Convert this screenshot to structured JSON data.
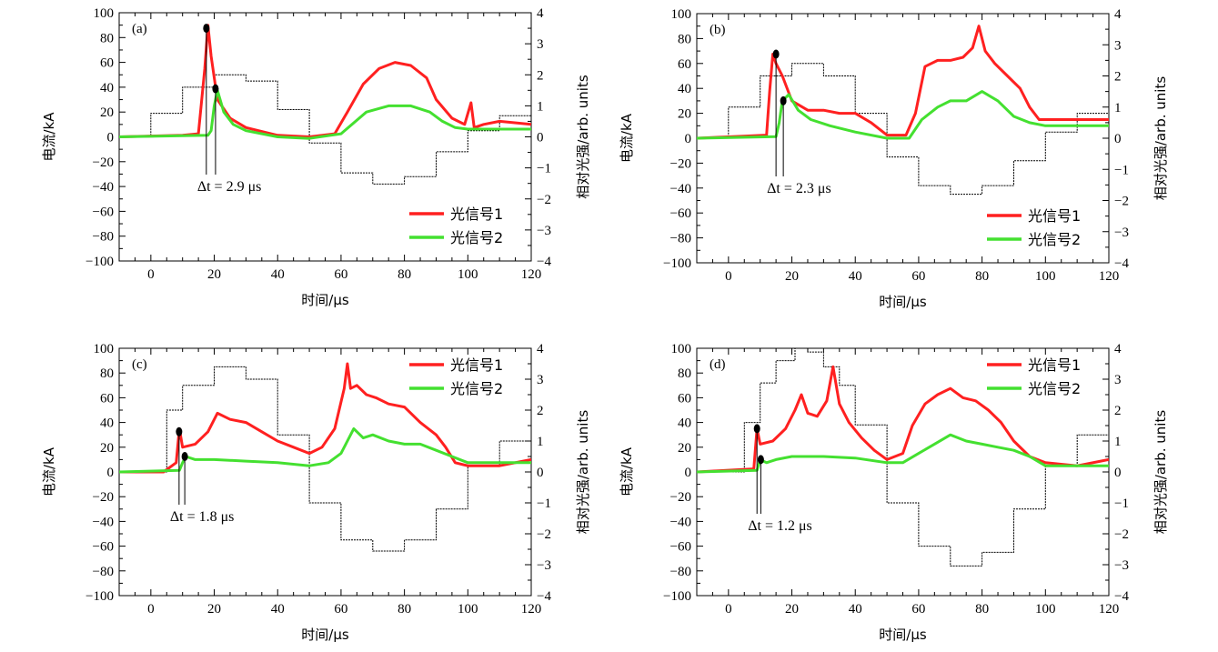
{
  "chart_data": [
    {
      "type": "line",
      "panel": "(a)",
      "xlabel": "时间/μs",
      "ylabel": "电流/kA",
      "y2label": "相对光强/arb. units",
      "xlim": [
        -10,
        120
      ],
      "ylim": [
        -100,
        100
      ],
      "y2lim": [
        -4,
        4
      ],
      "xticks": [
        "0",
        "20",
        "40",
        "60",
        "80",
        "100",
        "120"
      ],
      "yticks": [
        "−100",
        "−80",
        "−60",
        "−40",
        "−20",
        "0",
        "20",
        "40",
        "60",
        "80",
        "100"
      ],
      "y2ticks": [
        "−4",
        "−3",
        "−2",
        "−1",
        "0",
        "1",
        "2",
        "3",
        "4"
      ],
      "legend": {
        "position": "bottom-right",
        "entries": [
          "光信号1",
          "光信号2"
        ]
      },
      "annotation": "Δt = 2.9 μs",
      "series": [
        {
          "name": "电流",
          "color": "#000000",
          "axis": "left",
          "x": [
            -10,
            0,
            10,
            20,
            30,
            40,
            50,
            60,
            70,
            80,
            90,
            100,
            110,
            120
          ],
          "y": [
            0,
            19,
            40,
            50,
            45,
            22,
            -5,
            -29,
            -38,
            -32,
            -12,
            5,
            17,
            26
          ]
        },
        {
          "name": "光信号1",
          "color": "#ff2020",
          "axis": "right",
          "x": [
            -10,
            10,
            15,
            17,
            18,
            19,
            21,
            25,
            30,
            40,
            50,
            58,
            62,
            67,
            72,
            77,
            82,
            87,
            90,
            95,
            99,
            101,
            102,
            105,
            110,
            120
          ],
          "y": [
            0,
            0.05,
            0.1,
            2.2,
            3.6,
            2.6,
            1.2,
            0.6,
            0.3,
            0.05,
            0,
            0.1,
            0.8,
            1.7,
            2.2,
            2.4,
            2.3,
            1.9,
            1.2,
            0.6,
            0.4,
            1.1,
            0.3,
            0.4,
            0.5,
            0.4
          ]
        },
        {
          "name": "光信号2",
          "color": "#44e030",
          "axis": "right",
          "x": [
            -10,
            18,
            19,
            20,
            21,
            23,
            26,
            30,
            40,
            50,
            60,
            68,
            75,
            82,
            88,
            92,
            96,
            100,
            120
          ],
          "y": [
            0,
            0.05,
            0.2,
            1.0,
            1.5,
            0.8,
            0.4,
            0.2,
            0,
            -0.05,
            0.1,
            0.8,
            1.0,
            1.0,
            0.8,
            0.5,
            0.3,
            0.25,
            0.25
          ]
        }
      ],
      "markers": [
        {
          "x": 17.5,
          "y": 3.5
        },
        {
          "x": 20.4,
          "y": 1.55
        }
      ]
    },
    {
      "type": "line",
      "panel": "(b)",
      "xlabel": "时间/μs",
      "ylabel": "电流/kA",
      "y2label": "相对光强/arb. units",
      "xlim": [
        -10,
        120
      ],
      "ylim": [
        -100,
        100
      ],
      "y2lim": [
        -4,
        4
      ],
      "xticks": [
        "0",
        "20",
        "40",
        "60",
        "80",
        "100",
        "120"
      ],
      "yticks": [
        "−100",
        "−80",
        "−60",
        "−40",
        "−20",
        "0",
        "20",
        "40",
        "60",
        "80",
        "100"
      ],
      "y2ticks": [
        "−4",
        "−3",
        "−2",
        "−1",
        "0",
        "1",
        "2",
        "3",
        "4"
      ],
      "legend": {
        "position": "bottom-right",
        "entries": [
          "光信号1",
          "光信号2"
        ]
      },
      "annotation": "Δt = 2.3 μs",
      "series": [
        {
          "name": "电流",
          "color": "#000000",
          "axis": "left",
          "x": [
            -10,
            0,
            10,
            20,
            30,
            40,
            50,
            60,
            70,
            80,
            90,
            100,
            110,
            120
          ],
          "y": [
            0,
            25,
            50,
            60,
            50,
            20,
            -15,
            -38,
            -45,
            -38,
            -18,
            5,
            20,
            29
          ]
        },
        {
          "name": "光信号1",
          "color": "#ff2020",
          "axis": "right",
          "x": [
            -10,
            12,
            13,
            14,
            15,
            17,
            20,
            25,
            30,
            35,
            40,
            45,
            50,
            56,
            59,
            62,
            66,
            70,
            74,
            77,
            79,
            81,
            84,
            88,
            92,
            95,
            98,
            100,
            110,
            120
          ],
          "y": [
            0,
            0.1,
            1.5,
            2.7,
            2.4,
            2.0,
            1.2,
            0.9,
            0.9,
            0.8,
            0.8,
            0.5,
            0.1,
            0.1,
            0.8,
            2.3,
            2.5,
            2.5,
            2.6,
            2.9,
            3.6,
            2.8,
            2.4,
            2.0,
            1.6,
            1.0,
            0.6,
            0.6,
            0.6,
            0.6
          ]
        },
        {
          "name": "光信号2",
          "color": "#44e030",
          "axis": "right",
          "x": [
            -10,
            15,
            16,
            17,
            19,
            22,
            26,
            32,
            40,
            50,
            57,
            61,
            66,
            70,
            75,
            80,
            85,
            90,
            95,
            100,
            120
          ],
          "y": [
            0,
            0.05,
            0.5,
            1.2,
            1.4,
            0.9,
            0.6,
            0.4,
            0.2,
            0,
            0,
            0.6,
            1.0,
            1.2,
            1.2,
            1.5,
            1.2,
            0.7,
            0.5,
            0.4,
            0.4
          ]
        }
      ],
      "markers": [
        {
          "x": 15.0,
          "y": 2.7
        },
        {
          "x": 17.3,
          "y": 1.2
        }
      ]
    },
    {
      "type": "line",
      "panel": "(c)",
      "xlabel": "时间/μs",
      "ylabel": "电流/kA",
      "y2label": "相对光强/arb. units",
      "xlim": [
        -10,
        120
      ],
      "ylim": [
        -100,
        100
      ],
      "y2lim": [
        -4,
        4
      ],
      "xticks": [
        "0",
        "20",
        "40",
        "60",
        "80",
        "100",
        "120"
      ],
      "yticks": [
        "−100",
        "−80",
        "−60",
        "−40",
        "−20",
        "0",
        "20",
        "40",
        "60",
        "80",
        "100"
      ],
      "y2ticks": [
        "−4",
        "−3",
        "−2",
        "−1",
        "0",
        "1",
        "2",
        "3",
        "4"
      ],
      "legend": {
        "position": "top-right",
        "entries": [
          "光信号1",
          "光信号2"
        ]
      },
      "annotation": "Δt = 1.8 μs",
      "series": [
        {
          "name": "电流",
          "color": "#000000",
          "axis": "left",
          "x": [
            -10,
            -4,
            5,
            10,
            20,
            30,
            40,
            50,
            60,
            70,
            80,
            90,
            100,
            110,
            120
          ],
          "y": [
            0,
            0,
            50,
            70,
            85,
            75,
            30,
            -25,
            -55,
            -64,
            -55,
            -30,
            5,
            25,
            38
          ]
        },
        {
          "name": "光信号1",
          "color": "#ff2020",
          "axis": "right",
          "x": [
            -10,
            4,
            8,
            9,
            10,
            14,
            18,
            21,
            25,
            30,
            35,
            40,
            45,
            50,
            54,
            58,
            61,
            62,
            63,
            65,
            68,
            71,
            75,
            80,
            85,
            90,
            93,
            96,
            100,
            110,
            120
          ],
          "y": [
            0,
            0,
            0.3,
            1.4,
            0.8,
            0.9,
            1.3,
            1.9,
            1.7,
            1.6,
            1.3,
            1.0,
            0.8,
            0.6,
            0.8,
            1.4,
            2.7,
            3.5,
            2.7,
            2.8,
            2.5,
            2.4,
            2.2,
            2.1,
            1.6,
            1.2,
            0.8,
            0.3,
            0.2,
            0.2,
            0.4
          ]
        },
        {
          "name": "光信号2",
          "color": "#44e030",
          "axis": "right",
          "x": [
            -10,
            9,
            10,
            11,
            14,
            20,
            30,
            40,
            50,
            56,
            60,
            62,
            64,
            67,
            70,
            75,
            80,
            85,
            90,
            95,
            100,
            120
          ],
          "y": [
            0,
            0.05,
            0.3,
            0.5,
            0.4,
            0.4,
            0.35,
            0.3,
            0.2,
            0.3,
            0.6,
            1.0,
            1.4,
            1.1,
            1.2,
            1.0,
            0.9,
            0.9,
            0.7,
            0.5,
            0.3,
            0.3
          ]
        }
      ],
      "markers": [
        {
          "x": 8.9,
          "y": 1.3
        },
        {
          "x": 10.7,
          "y": 0.5
        }
      ]
    },
    {
      "type": "line",
      "panel": "(d)",
      "xlabel": "时间/μs",
      "ylabel": "电流/kA",
      "y2label": "相对光强/arb. units",
      "xlim": [
        -10,
        120
      ],
      "ylim": [
        -100,
        100
      ],
      "y2lim": [
        -4,
        4
      ],
      "xticks": [
        "0",
        "20",
        "40",
        "60",
        "80",
        "100",
        "120"
      ],
      "yticks": [
        "−100",
        "−80",
        "−60",
        "−40",
        "−20",
        "0",
        "20",
        "40",
        "60",
        "80",
        "100"
      ],
      "y2ticks": [
        "−4",
        "−3",
        "−2",
        "−1",
        "0",
        "1",
        "2",
        "3",
        "4"
      ],
      "legend": {
        "position": "top-right",
        "entries": [
          "光信号1",
          "光信号2"
        ]
      },
      "annotation": "Δt = 1.2 μs",
      "series": [
        {
          "name": "电流",
          "color": "#000000",
          "axis": "left",
          "x": [
            -10,
            -3,
            5,
            10,
            15,
            21,
            25,
            30,
            35,
            40,
            50,
            60,
            70,
            80,
            90,
            100,
            110,
            120
          ],
          "y": [
            0,
            0,
            40,
            72,
            90,
            100,
            97,
            85,
            70,
            38,
            -25,
            -60,
            -76,
            -65,
            -30,
            5,
            30,
            48
          ]
        },
        {
          "name": "光信号1",
          "color": "#ff2020",
          "axis": "right",
          "x": [
            -10,
            8,
            9,
            10,
            14,
            18,
            21,
            23,
            25,
            28,
            31,
            33,
            35,
            38,
            42,
            46,
            50,
            55,
            58,
            62,
            66,
            70,
            74,
            78,
            82,
            86,
            90,
            95,
            100,
            110,
            120
          ],
          "y": [
            0,
            0.1,
            1.4,
            0.9,
            1.0,
            1.4,
            2.0,
            2.5,
            1.9,
            1.8,
            2.3,
            3.4,
            2.2,
            1.6,
            1.1,
            0.7,
            0.4,
            0.6,
            1.5,
            2.2,
            2.5,
            2.7,
            2.4,
            2.3,
            2.0,
            1.6,
            1.0,
            0.5,
            0.3,
            0.2,
            0.4
          ]
        },
        {
          "name": "光信号2",
          "color": "#44e030",
          "axis": "right",
          "x": [
            -10,
            9,
            10,
            12,
            15,
            20,
            30,
            40,
            50,
            55,
            60,
            65,
            70,
            75,
            80,
            85,
            90,
            95,
            100,
            120
          ],
          "y": [
            0,
            0.05,
            0.4,
            0.3,
            0.4,
            0.5,
            0.5,
            0.45,
            0.3,
            0.3,
            0.6,
            0.9,
            1.2,
            1.0,
            0.9,
            0.8,
            0.7,
            0.5,
            0.2,
            0.2
          ]
        }
      ],
      "markers": [
        {
          "x": 9.0,
          "y": 1.4
        },
        {
          "x": 10.2,
          "y": 0.4
        }
      ]
    }
  ]
}
